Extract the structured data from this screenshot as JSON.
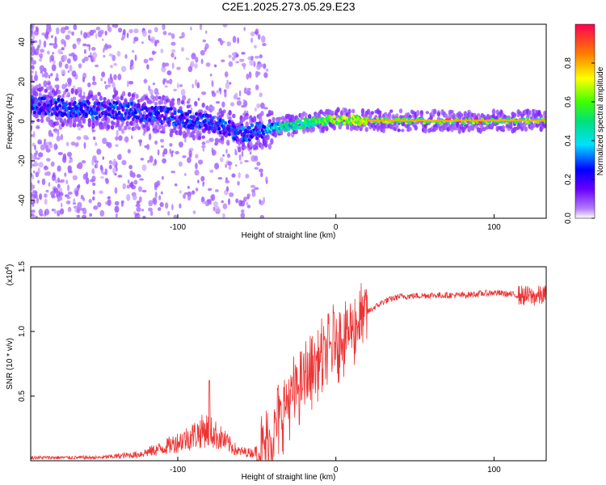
{
  "title": "C2E1.2025.273.05.29.E23",
  "chart_data": [
    {
      "type": "heatmap",
      "xlabel": "Height of straight line (km)",
      "ylabel": "Frequency (Hz)",
      "xlim": [
        -193,
        133
      ],
      "ylim": [
        -49,
        49
      ],
      "xticks": [
        -100,
        0,
        100
      ],
      "yticks": [
        -40,
        -20,
        0,
        20,
        40
      ],
      "colorbar": {
        "label": "Normalized spectral amplitude",
        "range": [
          0,
          1
        ],
        "ticks": [
          "0.0",
          "0.2",
          "0.4",
          "0.6",
          "0.8"
        ]
      },
      "ridge_frequency_hz": [
        {
          "x": -190,
          "y": 8
        },
        {
          "x": -160,
          "y": 6
        },
        {
          "x": -130,
          "y": 5
        },
        {
          "x": -100,
          "y": 2
        },
        {
          "x": -75,
          "y": -2
        },
        {
          "x": -60,
          "y": -6
        },
        {
          "x": -50,
          "y": -5
        },
        {
          "x": -35,
          "y": -3
        },
        {
          "x": -20,
          "y": -1
        },
        {
          "x": 0,
          "y": 1
        },
        {
          "x": 20,
          "y": 0.5
        },
        {
          "x": 60,
          "y": 0
        },
        {
          "x": 100,
          "y": 0
        },
        {
          "x": 133,
          "y": 0.5
        }
      ]
    },
    {
      "type": "line",
      "xlabel": "Height of straight line (km)",
      "ylabel": "SNR (10 * v/v)",
      "scale_label": "(x10",
      "scale_exponent": "4",
      "scale_suffix": ")",
      "xlim": [
        -193,
        133
      ],
      "ylim": [
        0,
        1.5
      ],
      "xticks": [
        -100,
        0,
        100
      ],
      "yticks": [
        0.5,
        1.0,
        1.5
      ],
      "ytick_labels": [
        "0.5",
        "1.0",
        "1.5"
      ],
      "color": "#ee3333",
      "series": [
        {
          "name": "SNR",
          "envelope": [
            {
              "x": -193,
              "y": 0.02
            },
            {
              "x": -150,
              "y": 0.02
            },
            {
              "x": -125,
              "y": 0.04
            },
            {
              "x": -110,
              "y": 0.08
            },
            {
              "x": -95,
              "y": 0.14
            },
            {
              "x": -82,
              "y": 0.2
            },
            {
              "x": -72,
              "y": 0.14
            },
            {
              "x": -62,
              "y": 0.06
            },
            {
              "x": -52,
              "y": 0.05
            },
            {
              "x": -45,
              "y": 0.12
            },
            {
              "x": -38,
              "y": 0.3
            },
            {
              "x": -30,
              "y": 0.5
            },
            {
              "x": -20,
              "y": 0.65
            },
            {
              "x": -10,
              "y": 0.8
            },
            {
              "x": 0,
              "y": 0.95
            },
            {
              "x": 10,
              "y": 1.05
            },
            {
              "x": 20,
              "y": 1.15
            },
            {
              "x": 30,
              "y": 1.23
            },
            {
              "x": 40,
              "y": 1.27
            },
            {
              "x": 60,
              "y": 1.28
            },
            {
              "x": 80,
              "y": 1.28
            },
            {
              "x": 100,
              "y": 1.3
            },
            {
              "x": 115,
              "y": 1.28
            },
            {
              "x": 125,
              "y": 1.27
            },
            {
              "x": 133,
              "y": 1.28
            }
          ]
        }
      ]
    }
  ]
}
